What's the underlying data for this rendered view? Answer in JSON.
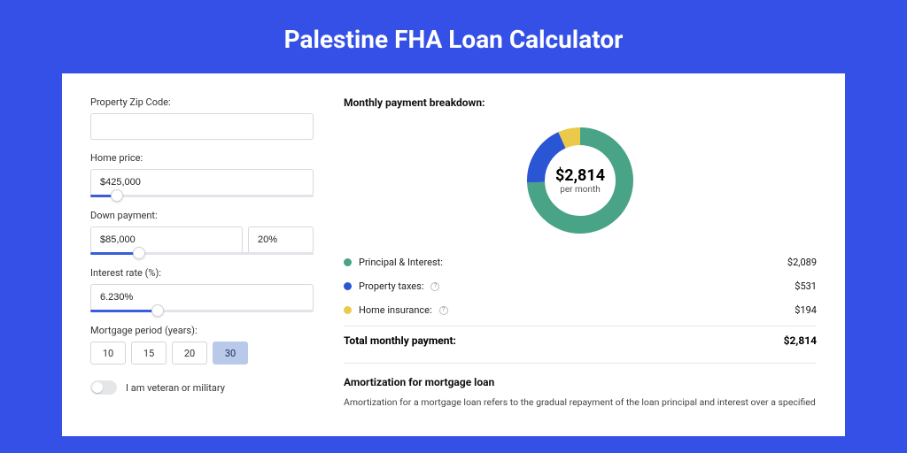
{
  "page": {
    "title": "Palestine FHA Loan Calculator",
    "bg_color": "#3550e6",
    "card_bg": "#ffffff"
  },
  "form": {
    "zip": {
      "label": "Property Zip Code:",
      "value": ""
    },
    "home_price": {
      "label": "Home price:",
      "value": "$425,000",
      "slider_pct": 12
    },
    "down_payment": {
      "label": "Down payment:",
      "amount": "$85,000",
      "percent": "20%",
      "slider_pct": 22
    },
    "interest": {
      "label": "Interest rate (%):",
      "value": "6.230%",
      "slider_pct": 30
    },
    "period": {
      "label": "Mortgage period (years):",
      "options": [
        "10",
        "15",
        "20",
        "30"
      ],
      "selected_index": 3
    },
    "veteran": {
      "label": "I am veteran or military",
      "on": false
    }
  },
  "breakdown": {
    "title": "Monthly payment breakdown:",
    "donut": {
      "center_amount": "$2,814",
      "center_sub": "per month",
      "slices": [
        {
          "label": "Principal & Interest:",
          "value": 2089,
          "value_text": "$2,089",
          "color": "#49a386",
          "has_info": false
        },
        {
          "label": "Property taxes:",
          "value": 531,
          "value_text": "$531",
          "color": "#2a55d4",
          "has_info": true
        },
        {
          "label": "Home insurance:",
          "value": 194,
          "value_text": "$194",
          "color": "#ebc94b",
          "has_info": true
        }
      ],
      "track_color": "#f0f1f3",
      "stroke_width": 20
    },
    "total": {
      "label": "Total monthly payment:",
      "value": "$2,814"
    }
  },
  "amortization": {
    "title": "Amortization for mortgage loan",
    "body": "Amortization for a mortgage loan refers to the gradual repayment of the loan principal and interest over a specified"
  }
}
